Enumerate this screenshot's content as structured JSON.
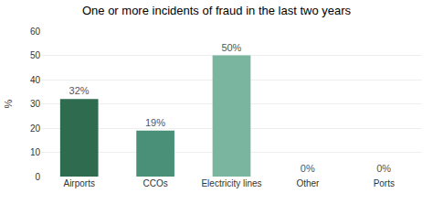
{
  "chart_data": {
    "type": "bar",
    "title": "One or more incidents of fraud in the last two years",
    "categories": [
      "Airports",
      "CCOs",
      "Electricity lines",
      "Other",
      "Ports"
    ],
    "values": [
      32,
      19,
      50,
      0,
      0
    ],
    "value_labels": [
      "32%",
      "19%",
      "50%",
      "0%",
      "0%"
    ],
    "data_labels": true,
    "colors": [
      "#2e6b4f",
      "#4a9078",
      "#7ab5a0",
      "#d0e8e0",
      "#d0e8e0"
    ],
    "ylabel": "%",
    "ylim": [
      0,
      60
    ],
    "yticks": [
      0,
      10,
      20,
      30,
      40,
      50,
      60
    ],
    "grid": true
  }
}
